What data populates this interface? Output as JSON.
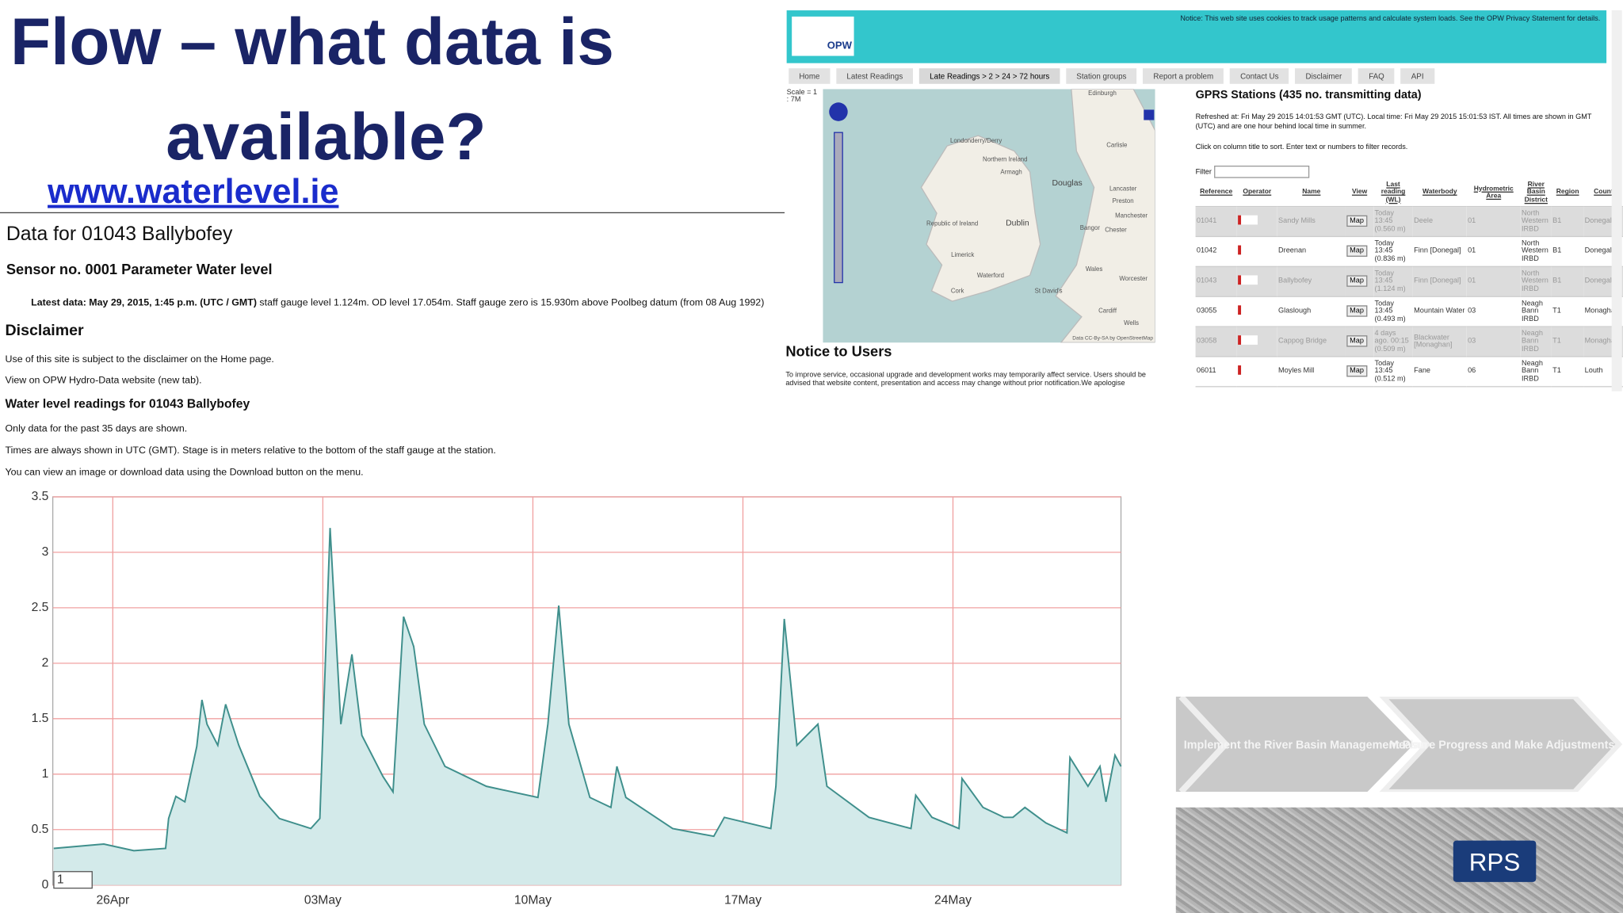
{
  "slide": {
    "title_lines": [
      "Flow – what data is",
      "available?"
    ],
    "link": "www.waterlevel.ie"
  },
  "station_page": {
    "heading": "Data for 01043 Ballybofey",
    "sensor": "Sensor no. 0001 Parameter Water level",
    "latest_label": "Latest data: May 29, 2015, 1:45 p.m. (UTC / GMT)",
    "latest_text": "staff gauge level 1.124m. OD level 17.054m. Staff gauge zero is 15.930m above Poolbeg datum (from 08 Aug 1992)",
    "disclaimer_heading": "Disclaimer",
    "paragraphs": [
      "Use of this site is subject to the disclaimer on the Home page.",
      "View on OPW Hydro-Data website (new tab)."
    ],
    "readings_heading": "Water level readings for 01043 Ballybofey",
    "notes": [
      "Only data for the past 35 days are shown.",
      "Times are always shown in UTC (GMT). Stage is in meters relative to the bottom of the staff gauge at the station.",
      "You can view an image or download data using the Download button on the menu."
    ],
    "chart_input": "1"
  },
  "chart_data": {
    "type": "area",
    "x": [
      24.03,
      25.7,
      26.7,
      27.76,
      27.86,
      28.1,
      28.4,
      28.6,
      28.8,
      28.97,
      29.14,
      29.5,
      29.76,
      30.2,
      30.9,
      31.55,
      32.6,
      32.9,
      33.24,
      33.6,
      33.97,
      34.3,
      35,
      35.34,
      35.69,
      36.03,
      36.38,
      37.07,
      38.45,
      40.17,
      40.5,
      40.86,
      41.2,
      41.9,
      42.6,
      42.8,
      43.1,
      44.66,
      46.03,
      46.38,
      47.93,
      48.1,
      48.38,
      48.8,
      49.5,
      49.8,
      51.2,
      52.6,
      52.76,
      53.3,
      54.2,
      54.3,
      55,
      55.7,
      56,
      56.4,
      57.1,
      57.8,
      57.9,
      58.5,
      58.9,
      59.1,
      59.4,
      59.6
    ],
    "series": [
      {
        "name": "Water level",
        "color": "#3f8f8c",
        "fill": "#d3eaea",
        "values": [
          0.33,
          0.37,
          0.31,
          0.33,
          0.6,
          0.8,
          0.75,
          1.0,
          1.25,
          1.67,
          1.45,
          1.26,
          1.63,
          1.26,
          0.8,
          0.6,
          0.51,
          0.6,
          3.22,
          1.45,
          2.08,
          1.35,
          0.98,
          0.84,
          2.42,
          2.15,
          1.45,
          1.07,
          0.89,
          0.79,
          1.45,
          2.52,
          1.45,
          0.79,
          0.7,
          1.07,
          0.79,
          0.51,
          0.44,
          0.61,
          0.51,
          0.89,
          2.4,
          1.26,
          1.45,
          0.89,
          0.61,
          0.51,
          0.81,
          0.61,
          0.51,
          0.96,
          0.7,
          0.61,
          0.61,
          0.7,
          0.56,
          0.47,
          1.15,
          0.89,
          1.07,
          0.75,
          1.17,
          1.07
        ]
      }
    ],
    "xlim": [
      24,
      59.6
    ],
    "xticks": [
      {
        "value": 26,
        "label": "26Apr"
      },
      {
        "value": 33,
        "label": "03May"
      },
      {
        "value": 40,
        "label": "10May"
      },
      {
        "value": 47,
        "label": "17May"
      },
      {
        "value": 54,
        "label": "24May"
      }
    ],
    "ylim": [
      0,
      3.5
    ],
    "yticks": [
      0,
      0.5,
      1,
      1.5,
      2,
      2.5,
      3,
      3.5
    ],
    "grid": true,
    "grid_color": "#f0a0a0"
  },
  "website": {
    "notice": "Notice: This web site uses cookies to track usage patterns and calculate system loads. See the OPW Privacy Statement for details.",
    "logo": "OPW",
    "nav": [
      "Home",
      "Latest Readings",
      "Late Readings > 2 > 24 > 72 hours",
      "Station groups",
      "Report a problem",
      "Contact Us",
      "Disclaimer",
      "FAQ",
      "API"
    ],
    "map": {
      "scale": "Scale = 1 : 7M",
      "labels": [
        "Edinburgh",
        "Londonderry/Derry",
        "Northern Ireland",
        "Armagh",
        "Douglas",
        "Carlisle",
        "Lancaster",
        "Preston",
        "Manchester",
        "Chester",
        "Bangor",
        "Dublin",
        "Republic of Ireland",
        "Limerick",
        "Waterford",
        "Cork",
        "St David's",
        "Wales",
        "Worcester",
        "Cardiff",
        "Wells"
      ],
      "attribution": "Data CC-By-SA by OpenStreetMap"
    },
    "notice_heading": "Notice to Users",
    "notice_text": "To improve service, occasional upgrade and development works may temporarily affect service. Users should be advised that website content, presentation and access may change without prior notification.We apologise",
    "stations": {
      "title": "GPRS Stations (435 no. transmitting data)",
      "refreshed": "Refreshed at: Fri May 29 2015 14:01:53 GMT (UTC). Local time: Fri May 29 2015 15:01:53 IST. All times are shown in GMT (UTC) and are one hour behind local time in summer.",
      "instructions": "Click on column title to sort. Enter text or numbers to filter records.",
      "filter_label": "Filter",
      "columns": [
        "Reference",
        "Operator",
        "Name",
        "View",
        "Last reading (WL)",
        "Waterbody",
        "Hydrometric Area",
        "River Basin District",
        "Region",
        "County"
      ],
      "rows": [
        [
          "01041",
          "Sandy Mills",
          "Map",
          "Today 13:45 (0.560 m)",
          "Deele",
          "01",
          "North Western IRBD",
          "B1",
          "Donegal"
        ],
        [
          "01042",
          "Dreenan",
          "Map",
          "Today 13:45 (0.836 m)",
          "Finn [Donegal]",
          "01",
          "North Western IRBD",
          "B1",
          "Donegal"
        ],
        [
          "01043",
          "Ballybofey",
          "Map",
          "Today 13:45 (1.124 m)",
          "Finn [Donegal]",
          "01",
          "North Western IRBD",
          "B1",
          "Donegal"
        ],
        [
          "03055",
          "Glaslough",
          "Map",
          "Today 13:45 (0.493 m)",
          "Mountain Water",
          "03",
          "Neagh Bann IRBD",
          "T1",
          "Monaghan"
        ],
        [
          "03058",
          "Cappog Bridge",
          "Map",
          "4 days ago. 00:15 (0.509 m)",
          "Blackwater [Monaghan]",
          "03",
          "Neagh Bann IRBD",
          "T1",
          "Monaghan"
        ],
        [
          "06011",
          "Moyles Mill",
          "Map",
          "Today 13:45 (0.512 m)",
          "Fane",
          "06",
          "Neagh Bann IRBD",
          "T1",
          "Louth"
        ]
      ]
    }
  },
  "process": {
    "steps": [
      "Implement the River Basin Management Plan",
      "Measure Progress and Make Adjustments"
    ],
    "logo": "RPS"
  }
}
